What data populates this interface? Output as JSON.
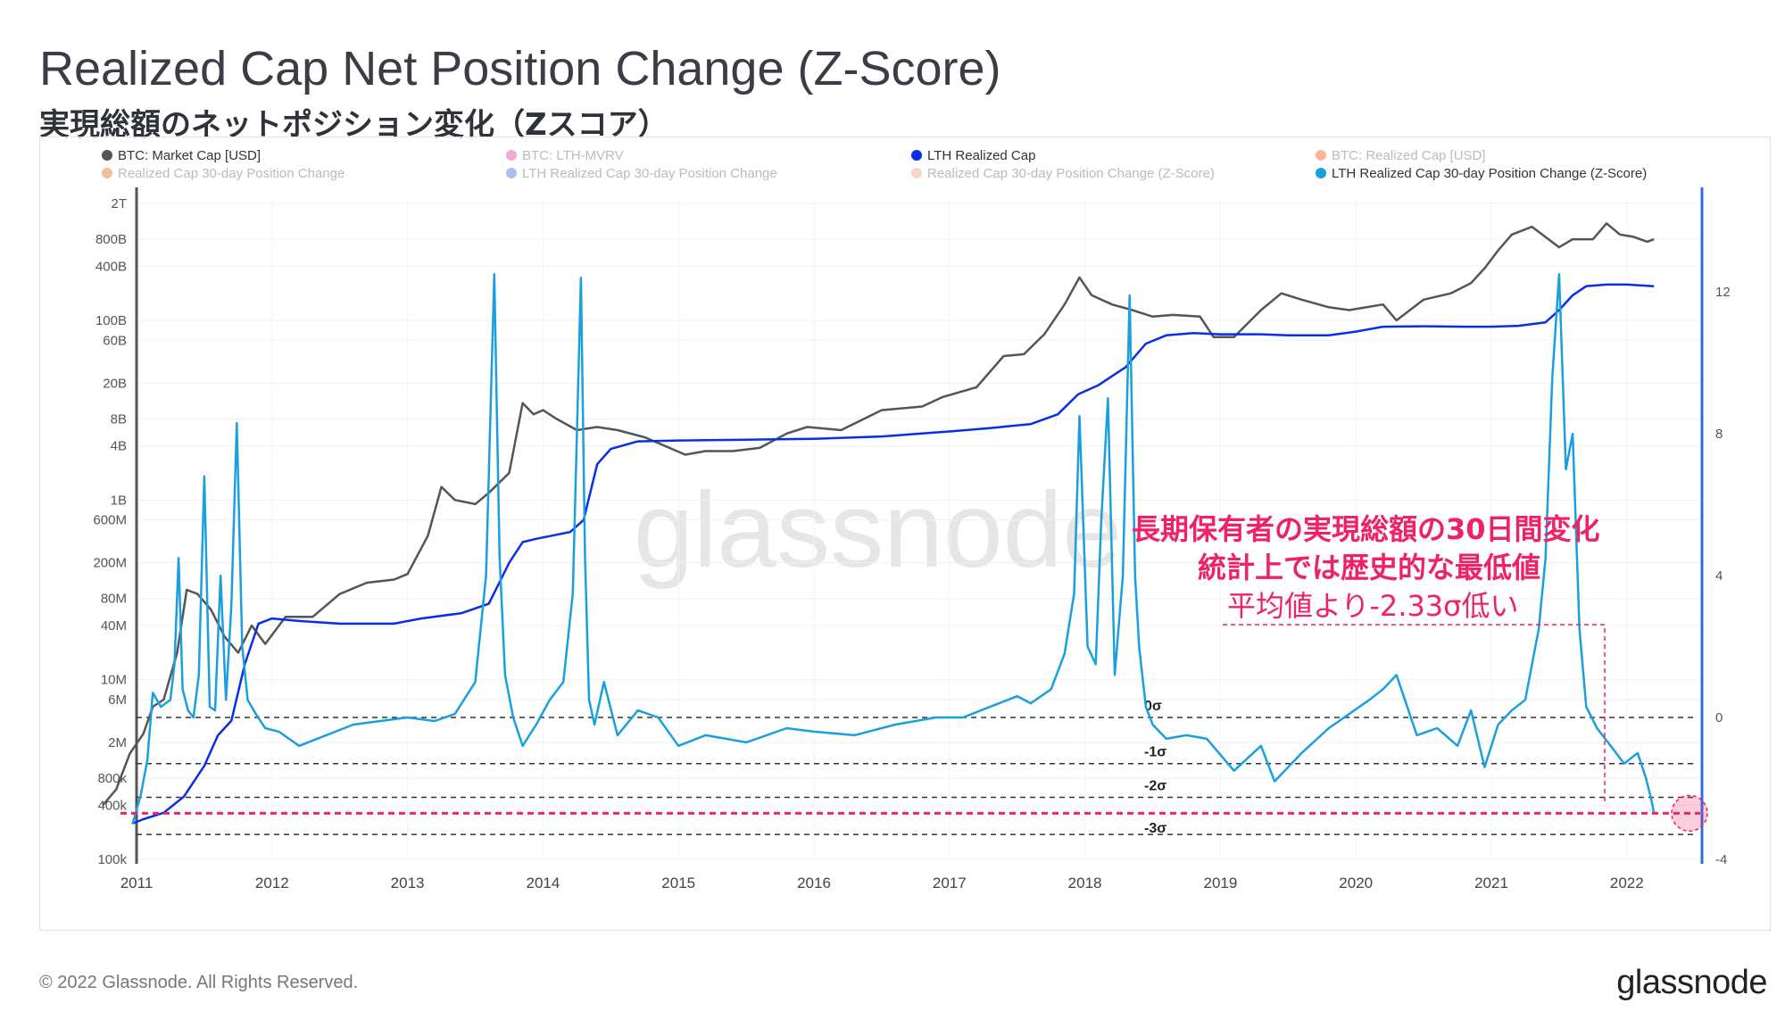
{
  "title": "Realized Cap Net Position Change (Z-Score)",
  "subtitle": "実現総額のネットポジション変化（Zスコア）",
  "footer": "© 2022 Glassnode. All Rights Reserved.",
  "brand": "glassnode",
  "watermark": "glassnode",
  "chart_data": {
    "type": "line",
    "legend": [
      {
        "label": "BTC: Market Cap [USD]",
        "color": "#555555",
        "active": true
      },
      {
        "label": "BTC: LTH-MVRV",
        "color": "#e8419b",
        "active": false
      },
      {
        "label": "LTH Realized Cap",
        "color": "#0a2ee6",
        "active": true
      },
      {
        "label": "BTC: Realized Cap [USD]",
        "color": "#f05a1e",
        "active": false
      },
      {
        "label": "Realized Cap 30-day Position Change",
        "color": "#e07020",
        "active": false
      },
      {
        "label": "LTH Realized Cap 30-day Position Change",
        "color": "#3a7bd5",
        "active": false
      },
      {
        "label": "Realized Cap 30-day Position Change (Z-Score)",
        "color": "#f2a57e",
        "active": false
      },
      {
        "label": "LTH Realized Cap 30-day Position Change (Z-Score)",
        "color": "#1a9fdf",
        "active": true
      }
    ],
    "x_ticks": [
      "2011",
      "2012",
      "2013",
      "2014",
      "2015",
      "2016",
      "2017",
      "2018",
      "2019",
      "2020",
      "2021",
      "2022"
    ],
    "xlim": [
      2010.7,
      2022.3
    ],
    "y_left_ticks": [
      "2T",
      "800B",
      "400B",
      "100B",
      "60B",
      "20B",
      "8B",
      "4B",
      "1B",
      "600M",
      "200M",
      "80M",
      "40M",
      "10M",
      "6M",
      "2M",
      "800k",
      "400k",
      "100k"
    ],
    "y_left_scale": "log",
    "y_right_ticks": [
      "12",
      "8",
      "4",
      "0",
      "-4"
    ],
    "y_right_lim": [
      -4,
      15.2
    ],
    "sigma_lines": [
      {
        "label": "0σ",
        "z": 0
      },
      {
        "label": "-1σ",
        "z": -1.3
      },
      {
        "label": "-2σ",
        "z": -2.25
      },
      {
        "label": "-3σ",
        "z": -3.3
      }
    ],
    "min_marker_z": -2.7,
    "annotation": {
      "line1": "長期保有者の実現総額の30日間変化",
      "line2": "統計上では歴史的な最低値",
      "line3": "平均値より-2.33σ低い"
    },
    "series": [
      {
        "name": "BTC: Market Cap [USD]",
        "axis": "left",
        "x": [
          2010.75,
          2010.85,
          2010.95,
          2011.05,
          2011.12,
          2011.2,
          2011.3,
          2011.37,
          2011.45,
          2011.55,
          2011.65,
          2011.75,
          2011.85,
          2011.95,
          2012.1,
          2012.3,
          2012.5,
          2012.7,
          2012.9,
          2013.0,
          2013.15,
          2013.25,
          2013.35,
          2013.5,
          2013.6,
          2013.75,
          2013.85,
          2013.93,
          2014.0,
          2014.1,
          2014.25,
          2014.4,
          2014.55,
          2014.75,
          2014.9,
          2015.05,
          2015.2,
          2015.4,
          2015.6,
          2015.8,
          2015.95,
          2016.2,
          2016.5,
          2016.8,
          2016.95,
          2017.2,
          2017.4,
          2017.55,
          2017.7,
          2017.85,
          2017.96,
          2018.05,
          2018.2,
          2018.35,
          2018.5,
          2018.65,
          2018.85,
          2018.95,
          2019.1,
          2019.3,
          2019.45,
          2019.6,
          2019.8,
          2019.95,
          2020.2,
          2020.3,
          2020.5,
          2020.7,
          2020.85,
          2020.95,
          2021.05,
          2021.15,
          2021.3,
          2021.5,
          2021.6,
          2021.75,
          2021.85,
          2021.95,
          2022.05,
          2022.15,
          2022.2
        ],
        "y": [
          400000,
          600000,
          1500000,
          2500000,
          5000000,
          6000000,
          20000000,
          100000000,
          90000000,
          60000000,
          30000000,
          20000000,
          40000000,
          25000000,
          50000000,
          50000000,
          90000000,
          120000000,
          130000000,
          150000000,
          400000000,
          1400000000,
          1000000000,
          900000000,
          1200000000,
          2000000000,
          12000000000,
          9000000000,
          10000000000,
          8000000000,
          6000000000,
          6500000000,
          6000000000,
          5000000000,
          4000000000,
          3200000000,
          3500000000,
          3500000000,
          3800000000,
          5500000000,
          6500000000,
          6000000000,
          10000000000,
          11000000000,
          14000000000,
          18000000000,
          40000000000,
          42000000000,
          70000000000,
          150000000000,
          300000000000,
          190000000000,
          150000000000,
          130000000000,
          110000000000,
          115000000000,
          110000000000,
          65000000000,
          65000000000,
          130000000000,
          200000000000,
          170000000000,
          140000000000,
          130000000000,
          150000000000,
          100000000000,
          170000000000,
          200000000000,
          260000000000,
          380000000000,
          600000000000,
          900000000000,
          1100000000000,
          650000000000,
          800000000000,
          800000000000,
          1200000000000,
          900000000000,
          850000000000,
          750000000000,
          800000000000
        ]
      },
      {
        "name": "LTH Realized Cap",
        "axis": "left",
        "x": [
          2010.97,
          2011.05,
          2011.2,
          2011.35,
          2011.5,
          2011.6,
          2011.7,
          2011.8,
          2011.9,
          2012.0,
          2012.2,
          2012.5,
          2012.9,
          2013.1,
          2013.4,
          2013.6,
          2013.75,
          2013.85,
          2013.95,
          2014.2,
          2014.3,
          2014.4,
          2014.5,
          2014.7,
          2015.0,
          2015.5,
          2016.0,
          2016.5,
          2017.0,
          2017.3,
          2017.6,
          2017.8,
          2017.95,
          2018.1,
          2018.3,
          2018.45,
          2018.6,
          2018.8,
          2019.0,
          2019.3,
          2019.5,
          2019.8,
          2020.0,
          2020.2,
          2020.5,
          2020.8,
          2021.0,
          2021.2,
          2021.4,
          2021.5,
          2021.6,
          2021.7,
          2021.85,
          2022.0,
          2022.2
        ],
        "y": [
          250000,
          280000,
          330000,
          500000,
          1100000,
          2400000,
          3500000,
          15000000,
          42000000,
          48000000,
          45000000,
          42000000,
          42000000,
          48000000,
          55000000,
          70000000,
          200000000,
          340000000,
          370000000,
          440000000,
          600000000,
          2500000000,
          3700000000,
          4500000000,
          4600000000,
          4700000000,
          4800000000,
          5100000000,
          5800000000,
          6300000000,
          7000000000,
          9000000000,
          15000000000,
          19000000000,
          30000000000,
          55000000000,
          68000000000,
          72000000000,
          70000000000,
          70000000000,
          68000000000,
          68000000000,
          75000000000,
          85000000000,
          86000000000,
          85000000000,
          85000000000,
          87000000000,
          95000000000,
          130000000000,
          190000000000,
          240000000000,
          250000000000,
          250000000000,
          240000000000
        ]
      },
      {
        "name": "LTH Realized Cap 30-day Position Change (Z-Score)",
        "axis": "right",
        "x": [
          2010.97,
          2011.03,
          2011.08,
          2011.12,
          2011.18,
          2011.25,
          2011.28,
          2011.31,
          2011.34,
          2011.38,
          2011.42,
          2011.46,
          2011.5,
          2011.54,
          2011.58,
          2011.62,
          2011.66,
          2011.7,
          2011.74,
          2011.78,
          2011.82,
          2011.88,
          2011.95,
          2012.05,
          2012.2,
          2012.4,
          2012.6,
          2012.8,
          2013.0,
          2013.2,
          2013.35,
          2013.5,
          2013.58,
          2013.64,
          2013.68,
          2013.72,
          2013.78,
          2013.85,
          2013.95,
          2014.05,
          2014.15,
          2014.22,
          2014.28,
          2014.31,
          2014.34,
          2014.38,
          2014.45,
          2014.55,
          2014.7,
          2014.85,
          2015.0,
          2015.2,
          2015.5,
          2015.8,
          2016.0,
          2016.3,
          2016.6,
          2016.9,
          2017.1,
          2017.3,
          2017.5,
          2017.6,
          2017.75,
          2017.85,
          2017.92,
          2017.96,
          2018.02,
          2018.08,
          2018.12,
          2018.17,
          2018.22,
          2018.28,
          2018.33,
          2018.37,
          2018.4,
          2018.45,
          2018.5,
          2018.6,
          2018.75,
          2018.9,
          2019.1,
          2019.3,
          2019.4,
          2019.6,
          2019.8,
          2019.95,
          2020.1,
          2020.2,
          2020.3,
          2020.45,
          2020.6,
          2020.75,
          2020.85,
          2020.95,
          2021.05,
          2021.15,
          2021.25,
          2021.35,
          2021.4,
          2021.45,
          2021.5,
          2021.55,
          2021.6,
          2021.65,
          2021.7,
          2021.78,
          2021.88,
          2021.98,
          2022.08,
          2022.14,
          2022.18,
          2022.2
        ],
        "y": [
          -3.0,
          -2.2,
          -1.2,
          0.7,
          0.3,
          0.5,
          1.5,
          4.5,
          0.8,
          0.2,
          0.0,
          1.2,
          6.8,
          0.3,
          0.2,
          4.0,
          0.5,
          3.2,
          8.3,
          2.0,
          0.5,
          0.1,
          -0.3,
          -0.4,
          -0.8,
          -0.5,
          -0.2,
          -0.1,
          0.0,
          -0.1,
          0.1,
          1.0,
          4.0,
          12.5,
          4.5,
          1.2,
          0.0,
          -0.8,
          -0.2,
          0.5,
          1.0,
          3.5,
          12.4,
          4.5,
          0.5,
          -0.2,
          1.0,
          -0.5,
          0.2,
          0.0,
          -0.8,
          -0.5,
          -0.7,
          -0.3,
          -0.4,
          -0.5,
          -0.2,
          0.0,
          0.0,
          0.3,
          0.6,
          0.4,
          0.8,
          1.8,
          3.5,
          8.5,
          2.0,
          1.5,
          5.5,
          9.0,
          1.2,
          4.0,
          11.9,
          4.0,
          2.0,
          0.3,
          -0.2,
          -0.6,
          -0.5,
          -0.6,
          -1.5,
          -0.8,
          -1.8,
          -1.0,
          -0.3,
          0.1,
          0.5,
          0.8,
          1.2,
          -0.5,
          -0.3,
          -0.8,
          0.2,
          -1.4,
          -0.2,
          0.2,
          0.5,
          2.5,
          4.5,
          9.6,
          12.5,
          7.0,
          8.0,
          2.5,
          0.3,
          -0.3,
          -0.8,
          -1.3,
          -1.0,
          -1.7,
          -2.3,
          -2.7
        ]
      }
    ]
  }
}
